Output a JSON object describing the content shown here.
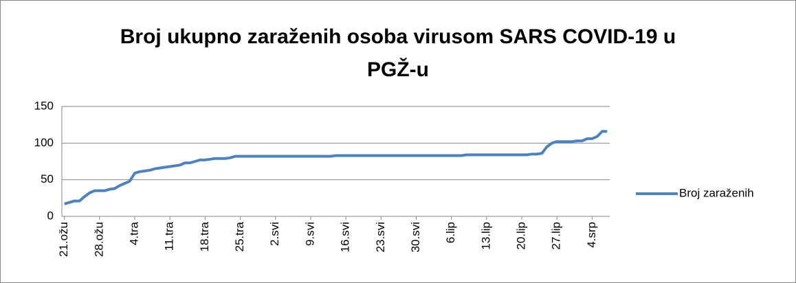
{
  "chart_data": {
    "type": "line",
    "title": "Broj ukupno zaraženih osoba virusom SARS COVID-19 u PGŽ-u",
    "categories": [
      "21.ožu",
      null,
      null,
      null,
      null,
      null,
      null,
      "28.ožu",
      null,
      null,
      null,
      null,
      null,
      null,
      "4.tra",
      null,
      null,
      null,
      null,
      null,
      null,
      "11.tra",
      null,
      null,
      null,
      null,
      null,
      null,
      "18.tra",
      null,
      null,
      null,
      null,
      null,
      null,
      "25.tra",
      null,
      null,
      null,
      null,
      null,
      null,
      "2.svi",
      null,
      null,
      null,
      null,
      null,
      null,
      "9.svi",
      null,
      null,
      null,
      null,
      null,
      null,
      "16.svi",
      null,
      null,
      null,
      null,
      null,
      null,
      "23.svi",
      null,
      null,
      null,
      null,
      null,
      null,
      "30.svi",
      null,
      null,
      null,
      null,
      null,
      null,
      "6.lip",
      null,
      null,
      null,
      null,
      null,
      null,
      "13.lip",
      null,
      null,
      null,
      null,
      null,
      null,
      "20.lip",
      null,
      null,
      null,
      null,
      null,
      null,
      "27.lip",
      null,
      null,
      null,
      null,
      null,
      null,
      "4.srp",
      null,
      null,
      null
    ],
    "series": [
      {
        "name": "Broj zaraženih",
        "color": "#4f81bd",
        "values": [
          17,
          19,
          21,
          21,
          27,
          32,
          35,
          35,
          35,
          37,
          38,
          42,
          45,
          48,
          59,
          61,
          62,
          63,
          65,
          66,
          67,
          68,
          69,
          70,
          73,
          73,
          75,
          77,
          77,
          78,
          79,
          79,
          79,
          80,
          82,
          82,
          82,
          82,
          82,
          82,
          82,
          82,
          82,
          82,
          82,
          82,
          82,
          82,
          82,
          82,
          82,
          82,
          82,
          82,
          83,
          83,
          83,
          83,
          83,
          83,
          83,
          83,
          83,
          83,
          83,
          83,
          83,
          83,
          83,
          83,
          83,
          83,
          83,
          83,
          83,
          83,
          83,
          83,
          83,
          83,
          84,
          84,
          84,
          84,
          84,
          84,
          84,
          84,
          84,
          84,
          84,
          84,
          84,
          85,
          85,
          86,
          95,
          100,
          102,
          102,
          102,
          102,
          103,
          103,
          106,
          106,
          109,
          116,
          116
        ]
      }
    ],
    "ylim": [
      0,
      150
    ],
    "yticks": [
      0,
      50,
      100,
      150
    ],
    "grid": true,
    "legend": "right"
  }
}
